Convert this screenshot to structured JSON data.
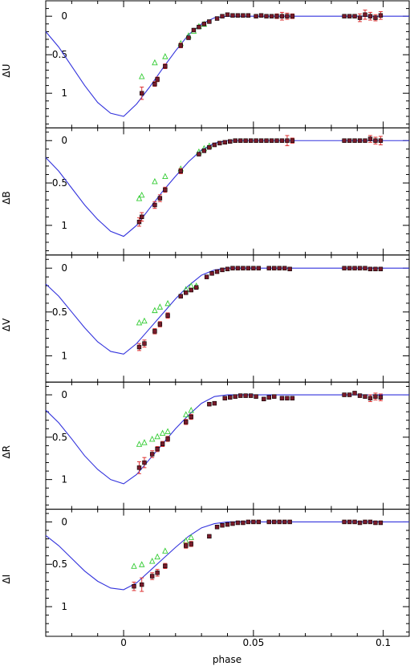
{
  "chart_data": {
    "type": "scatter",
    "xlabel": "phase",
    "xlim": [
      -0.03,
      0.11
    ],
    "x_ticks": [
      0,
      0.05,
      0.1
    ],
    "x_tick_labels": [
      "0",
      "0.05",
      "0.1"
    ],
    "colors": {
      "model": "#3333dd",
      "photometric": "#000000",
      "error_bar": "#dd3333",
      "filled_fill": "#7a1a2a",
      "open_triangle": "#33cc33"
    },
    "panels": [
      {
        "ylabel": "ΔU",
        "ylim": [
          1.45,
          -0.2
        ],
        "y_ticks": [
          0,
          0.5,
          1
        ],
        "y_tick_labels": [
          "0",
          "0.5",
          "1"
        ],
        "model": {
          "x": [
            -0.03,
            -0.025,
            -0.02,
            -0.015,
            -0.01,
            -0.005,
            0,
            0.005,
            0.01,
            0.015,
            0.02,
            0.025,
            0.03,
            0.035,
            0.04,
            0.045,
            0.05,
            0.06,
            0.07,
            0.08,
            0.09,
            0.1,
            0.11
          ],
          "y": [
            0.2,
            0.4,
            0.65,
            0.9,
            1.12,
            1.26,
            1.3,
            1.14,
            0.92,
            0.68,
            0.45,
            0.24,
            0.1,
            0.02,
            0.0,
            0.0,
            0.0,
            0.0,
            0.0,
            0.0,
            0.0,
            0.0,
            0.0
          ]
        },
        "points": {
          "x": [
            0.007,
            0.012,
            0.013,
            0.016,
            0.022,
            0.025,
            0.027,
            0.029,
            0.031,
            0.033,
            0.036,
            0.038,
            0.04,
            0.042,
            0.044,
            0.046,
            0.048,
            0.051,
            0.053,
            0.055,
            0.057,
            0.059,
            0.061,
            0.063,
            0.065,
            0.085,
            0.087,
            0.089,
            0.091,
            0.093,
            0.095,
            0.097,
            0.099
          ],
          "y": [
            1.0,
            0.88,
            0.82,
            0.65,
            0.38,
            0.28,
            0.18,
            0.14,
            0.1,
            0.07,
            0.03,
            0.0,
            -0.02,
            -0.01,
            -0.01,
            -0.01,
            -0.01,
            0.0,
            -0.01,
            0.0,
            0.0,
            0.0,
            0.0,
            0.0,
            0.0,
            0.0,
            0.0,
            0.0,
            0.02,
            -0.02,
            0.0,
            0.02,
            -0.01
          ],
          "err": [
            0.08,
            0.03,
            0.03,
            0.03,
            0.03,
            0.02,
            0.02,
            0.02,
            0.02,
            0.02,
            0.02,
            0.02,
            0.02,
            0.02,
            0.02,
            0.02,
            0.02,
            0.02,
            0.02,
            0.02,
            0.02,
            0.03,
            0.05,
            0.04,
            0.03,
            0.02,
            0.02,
            0.02,
            0.05,
            0.06,
            0.05,
            0.04,
            0.05
          ]
        },
        "open_points": {
          "x": [
            0.007,
            0.012,
            0.016,
            0.022,
            0.025,
            0.027,
            0.029,
            0.031
          ],
          "y": [
            0.78,
            0.6,
            0.52,
            0.35,
            0.25,
            0.19,
            0.13,
            0.1
          ]
        }
      },
      {
        "ylabel": "ΔB",
        "ylim": [
          1.35,
          -0.15
        ],
        "y_ticks": [
          0,
          0.5,
          1
        ],
        "y_tick_labels": [
          "0",
          "0.5",
          "1"
        ],
        "model": {
          "x": [
            -0.03,
            -0.025,
            -0.02,
            -0.015,
            -0.01,
            -0.005,
            0,
            0.005,
            0.01,
            0.015,
            0.02,
            0.025,
            0.03,
            0.035,
            0.04,
            0.045,
            0.05,
            0.06,
            0.07,
            0.08,
            0.09,
            0.1,
            0.11
          ],
          "y": [
            0.2,
            0.36,
            0.56,
            0.76,
            0.93,
            1.07,
            1.13,
            1.0,
            0.8,
            0.6,
            0.42,
            0.25,
            0.11,
            0.03,
            0.0,
            0.0,
            0.0,
            0.0,
            0.0,
            0.0,
            0.0,
            0.0,
            0.0
          ]
        },
        "points": {
          "x": [
            0.006,
            0.007,
            0.012,
            0.014,
            0.016,
            0.022,
            0.029,
            0.031,
            0.033,
            0.035,
            0.037,
            0.039,
            0.041,
            0.043,
            0.045,
            0.047,
            0.049,
            0.051,
            0.053,
            0.055,
            0.057,
            0.059,
            0.061,
            0.063,
            0.065,
            0.085,
            0.087,
            0.089,
            0.091,
            0.093,
            0.095,
            0.097,
            0.099
          ],
          "y": [
            0.96,
            0.9,
            0.76,
            0.68,
            0.58,
            0.36,
            0.16,
            0.12,
            0.08,
            0.05,
            0.03,
            0.02,
            0.01,
            0.0,
            0.0,
            0.0,
            0.0,
            0.0,
            0.0,
            0.0,
            0.0,
            0.0,
            0.0,
            0.0,
            0.0,
            0.0,
            0.0,
            0.0,
            0.0,
            0.0,
            -0.02,
            0.0,
            0.0
          ],
          "err": [
            0.05,
            0.05,
            0.04,
            0.04,
            0.03,
            0.03,
            0.02,
            0.02,
            0.02,
            0.02,
            0.02,
            0.02,
            0.02,
            0.02,
            0.02,
            0.02,
            0.02,
            0.02,
            0.02,
            0.02,
            0.02,
            0.02,
            0.02,
            0.06,
            0.03,
            0.02,
            0.02,
            0.02,
            0.02,
            0.02,
            0.04,
            0.04,
            0.05
          ]
        },
        "open_points": {
          "x": [
            0.006,
            0.007,
            0.012,
            0.016,
            0.022,
            0.029,
            0.031,
            0.033
          ],
          "y": [
            0.68,
            0.64,
            0.48,
            0.42,
            0.33,
            0.13,
            0.09,
            0.06
          ]
        }
      },
      {
        "ylabel": "ΔV",
        "ylim": [
          1.3,
          -0.15
        ],
        "y_ticks": [
          0,
          0.5,
          1
        ],
        "y_tick_labels": [
          "0",
          "0.5",
          "1"
        ],
        "model": {
          "x": [
            -0.03,
            -0.025,
            -0.02,
            -0.015,
            -0.01,
            -0.005,
            0,
            0.005,
            0.01,
            0.015,
            0.02,
            0.025,
            0.03,
            0.035,
            0.04,
            0.045,
            0.05,
            0.06,
            0.07,
            0.08,
            0.09,
            0.1,
            0.11
          ],
          "y": [
            0.18,
            0.32,
            0.5,
            0.68,
            0.84,
            0.95,
            0.98,
            0.86,
            0.69,
            0.52,
            0.35,
            0.2,
            0.08,
            0.02,
            0.0,
            0.0,
            0.0,
            0.0,
            0.0,
            0.0,
            0.0,
            0.0,
            0.0
          ]
        },
        "points": {
          "x": [
            0.006,
            0.008,
            0.012,
            0.014,
            0.017,
            0.022,
            0.024,
            0.026,
            0.028,
            0.032,
            0.034,
            0.036,
            0.038,
            0.04,
            0.042,
            0.044,
            0.046,
            0.048,
            0.05,
            0.052,
            0.056,
            0.058,
            0.06,
            0.062,
            0.064,
            0.085,
            0.087,
            0.089,
            0.091,
            0.093,
            0.095,
            0.097,
            0.099
          ],
          "y": [
            0.9,
            0.86,
            0.72,
            0.64,
            0.54,
            0.32,
            0.28,
            0.25,
            0.22,
            0.1,
            0.06,
            0.04,
            0.02,
            0.01,
            0.0,
            0.0,
            0.0,
            0.0,
            0.0,
            0.0,
            0.0,
            0.0,
            0.0,
            0.0,
            0.01,
            0.0,
            0.0,
            0.0,
            0.0,
            0.0,
            0.01,
            0.01,
            0.01
          ],
          "err": [
            0.04,
            0.04,
            0.03,
            0.03,
            0.03,
            0.02,
            0.02,
            0.02,
            0.02,
            0.02,
            0.02,
            0.02,
            0.02,
            0.02,
            0.02,
            0.02,
            0.02,
            0.02,
            0.02,
            0.02,
            0.02,
            0.02,
            0.02,
            0.02,
            0.02,
            0.02,
            0.02,
            0.02,
            0.02,
            0.02,
            0.02,
            0.02,
            0.02
          ]
        },
        "open_points": {
          "x": [
            0.006,
            0.008,
            0.012,
            0.014,
            0.017,
            0.024,
            0.026,
            0.028
          ],
          "y": [
            0.62,
            0.6,
            0.48,
            0.44,
            0.4,
            0.24,
            0.2,
            0.2
          ]
        }
      },
      {
        "ylabel": "ΔR",
        "ylim": [
          1.35,
          -0.15
        ],
        "y_ticks": [
          0,
          0.5,
          1
        ],
        "y_tick_labels": [
          "0",
          "0.5",
          "1"
        ],
        "model": {
          "x": [
            -0.03,
            -0.025,
            -0.02,
            -0.015,
            -0.01,
            -0.005,
            0,
            0.005,
            0.01,
            0.015,
            0.02,
            0.025,
            0.03,
            0.035,
            0.04,
            0.045,
            0.05,
            0.06,
            0.07,
            0.08,
            0.09,
            0.1,
            0.11
          ],
          "y": [
            0.18,
            0.33,
            0.52,
            0.72,
            0.88,
            1.0,
            1.05,
            0.94,
            0.76,
            0.58,
            0.4,
            0.24,
            0.1,
            0.02,
            0.0,
            0.0,
            0.0,
            0.0,
            0.0,
            0.0,
            0.0,
            0.0,
            0.0
          ]
        },
        "points": {
          "x": [
            0.006,
            0.008,
            0.011,
            0.013,
            0.015,
            0.017,
            0.024,
            0.026,
            0.033,
            0.035,
            0.039,
            0.041,
            0.043,
            0.045,
            0.047,
            0.049,
            0.051,
            0.054,
            0.056,
            0.058,
            0.061,
            0.063,
            0.065,
            0.085,
            0.087,
            0.089,
            0.091,
            0.093,
            0.095,
            0.097,
            0.099
          ],
          "y": [
            0.86,
            0.8,
            0.7,
            0.64,
            0.58,
            0.52,
            0.32,
            0.26,
            0.11,
            0.1,
            0.04,
            0.03,
            0.02,
            0.01,
            0.01,
            0.01,
            0.02,
            0.05,
            0.03,
            0.02,
            0.04,
            0.04,
            0.04,
            0.0,
            0.0,
            -0.02,
            0.01,
            0.02,
            0.04,
            0.02,
            0.03
          ],
          "err": [
            0.07,
            0.06,
            0.04,
            0.03,
            0.03,
            0.03,
            0.03,
            0.03,
            0.02,
            0.02,
            0.02,
            0.02,
            0.02,
            0.02,
            0.02,
            0.02,
            0.02,
            0.02,
            0.02,
            0.02,
            0.02,
            0.02,
            0.02,
            0.02,
            0.02,
            0.02,
            0.02,
            0.02,
            0.04,
            0.04,
            0.04
          ]
        },
        "open_points": {
          "x": [
            0.006,
            0.008,
            0.011,
            0.013,
            0.015,
            0.017,
            0.024,
            0.026
          ],
          "y": [
            0.58,
            0.56,
            0.52,
            0.49,
            0.45,
            0.43,
            0.23,
            0.18
          ]
        }
      },
      {
        "ylabel": "ΔI",
        "ylim": [
          1.35,
          -0.15
        ],
        "y_ticks": [
          0,
          0.5,
          1
        ],
        "y_tick_labels": [
          "0",
          "0.5",
          "1"
        ],
        "model": {
          "x": [
            -0.03,
            -0.025,
            -0.02,
            -0.015,
            -0.01,
            -0.005,
            0,
            0.005,
            0.01,
            0.015,
            0.02,
            0.025,
            0.03,
            0.035,
            0.04,
            0.045,
            0.05,
            0.06,
            0.07,
            0.08,
            0.09,
            0.1,
            0.11
          ],
          "y": [
            0.16,
            0.28,
            0.43,
            0.58,
            0.7,
            0.78,
            0.8,
            0.72,
            0.58,
            0.44,
            0.3,
            0.17,
            0.07,
            0.02,
            0.0,
            0.0,
            0.0,
            0.0,
            0.0,
            0.0,
            0.0,
            0.0,
            0.0
          ]
        },
        "points": {
          "x": [
            0.004,
            0.007,
            0.011,
            0.013,
            0.016,
            0.024,
            0.026,
            0.033,
            0.036,
            0.038,
            0.04,
            0.042,
            0.044,
            0.046,
            0.048,
            0.05,
            0.052,
            0.056,
            0.058,
            0.06,
            0.062,
            0.064,
            0.085,
            0.087,
            0.089,
            0.091,
            0.093,
            0.095,
            0.097,
            0.099
          ],
          "y": [
            0.76,
            0.74,
            0.64,
            0.6,
            0.52,
            0.28,
            0.26,
            0.17,
            0.06,
            0.04,
            0.03,
            0.02,
            0.01,
            0.01,
            0.0,
            0.0,
            0.0,
            0.0,
            0.0,
            0.0,
            0.0,
            0.0,
            0.0,
            0.0,
            0.0,
            0.01,
            0.0,
            0.0,
            0.01,
            0.01
          ],
          "err": [
            0.05,
            0.08,
            0.04,
            0.04,
            0.03,
            0.03,
            0.03,
            0.02,
            0.02,
            0.02,
            0.02,
            0.02,
            0.02,
            0.02,
            0.02,
            0.02,
            0.02,
            0.02,
            0.02,
            0.02,
            0.02,
            0.02,
            0.02,
            0.02,
            0.02,
            0.02,
            0.02,
            0.02,
            0.02,
            0.02
          ]
        },
        "open_points": {
          "x": [
            0.004,
            0.007,
            0.011,
            0.013,
            0.016,
            0.024,
            0.026
          ],
          "y": [
            0.52,
            0.5,
            0.46,
            0.41,
            0.34,
            0.22,
            0.18
          ]
        }
      }
    ]
  }
}
